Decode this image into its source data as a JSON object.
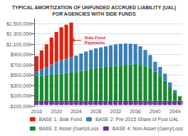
{
  "chart_data": {
    "type": "bar",
    "title": "TYPICAL AMORTIZATION OF UNFUNDED ACCRUED LIABILITY (UAL)",
    "subtitle": "FOR AGENCIES WITH SIDE FUNDS",
    "categories": [
      "2016",
      null,
      null,
      null,
      "2020",
      null,
      null,
      null,
      "2024",
      null,
      null,
      null,
      "2028",
      null,
      null,
      null,
      "2032",
      null,
      null,
      null,
      "2036",
      null,
      null,
      null,
      "2040",
      null,
      null,
      null,
      "2044",
      null
    ],
    "series": [
      {
        "name": "BASE 1: Side Fund",
        "color": "#dd2211",
        "values": [
          300000,
          370000,
          450000,
          520000,
          590000,
          640000,
          660000,
          670000,
          0,
          0,
          0,
          0,
          0,
          0,
          0,
          0,
          0,
          0,
          0,
          0,
          0,
          0,
          0,
          0,
          0,
          0,
          0,
          0,
          0,
          0
        ]
      },
      {
        "name": "BASE 2: Pre-2015 Share of Pool UAL",
        "color": "#3a7fb5",
        "values": [
          90000,
          120000,
          150000,
          200000,
          230000,
          260000,
          280000,
          300000,
          320000,
          340000,
          360000,
          370000,
          380000,
          390000,
          400000,
          410000,
          420000,
          420000,
          415000,
          400000,
          385000,
          360000,
          310000,
          250000,
          190000,
          170000,
          140000,
          100000,
          50000,
          0
        ]
      },
      {
        "name": "BASE 3: Asset (Gain)/Loss",
        "color": "#1a8a30",
        "values": [
          480000,
          490000,
          500000,
          510000,
          520000,
          530000,
          540000,
          550000,
          560000,
          580000,
          600000,
          620000,
          640000,
          650000,
          660000,
          670000,
          680000,
          690000,
          700000,
          710000,
          720000,
          700000,
          680000,
          640000,
          570000,
          490000,
          390000,
          260000,
          160000,
          90000
        ]
      },
      {
        "name": "BASE 4: Non-Asset (Gain)/Loss",
        "color": "#7030a0",
        "values": [
          -80000,
          -80000,
          -80000,
          -80000,
          -80000,
          -80000,
          -80000,
          -80000,
          -80000,
          -80000,
          -80000,
          -80000,
          -80000,
          -80000,
          -80000,
          -80000,
          -80000,
          -80000,
          -80000,
          -80000,
          -80000,
          -80000,
          -80000,
          -80000,
          -80000,
          -80000,
          -80000,
          -80000,
          -80000,
          -80000
        ]
      }
    ],
    "stacked": true,
    "ylim": [
      -100000,
      1600000
    ],
    "yticks": [
      {
        "value": -100000,
        "label": "-$100,000"
      },
      {
        "value": 100000,
        "label": "$100,000"
      },
      {
        "value": 300000,
        "label": "$300,000"
      },
      {
        "value": 500000,
        "label": "$500,000"
      },
      {
        "value": 700000,
        "label": "$700,000"
      },
      {
        "value": 900000,
        "label": "$900,000"
      },
      {
        "value": 1100000,
        "label": "$1,100,000"
      },
      {
        "value": 1300000,
        "label": "$1,300,000"
      },
      {
        "value": 1500000,
        "label": "$1,500,000"
      }
    ],
    "grid": true,
    "legend": "lower right",
    "annotations": [
      {
        "text": "Side Fund\nPayments",
        "color": "#dd2211"
      }
    ]
  }
}
